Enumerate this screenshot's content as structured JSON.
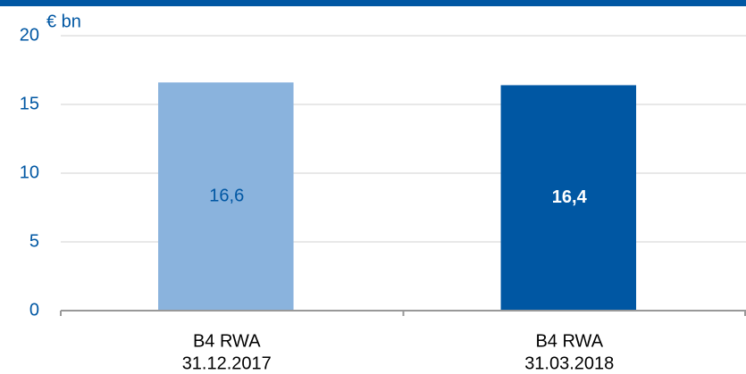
{
  "chart_data": {
    "type": "bar",
    "y_axis_label": "€ bn",
    "categories": [
      [
        "B4 RWA",
        "31.12.2017"
      ],
      [
        "B4 RWA",
        "31.03.2018"
      ]
    ],
    "values": [
      16.6,
      16.4
    ],
    "value_labels": [
      "16,6",
      "16,4"
    ],
    "colors": [
      "#8ab3dd",
      "#0057a3"
    ],
    "ylim": [
      0,
      20
    ],
    "yticks": [
      0,
      5,
      10,
      15,
      20
    ],
    "grid": true
  }
}
